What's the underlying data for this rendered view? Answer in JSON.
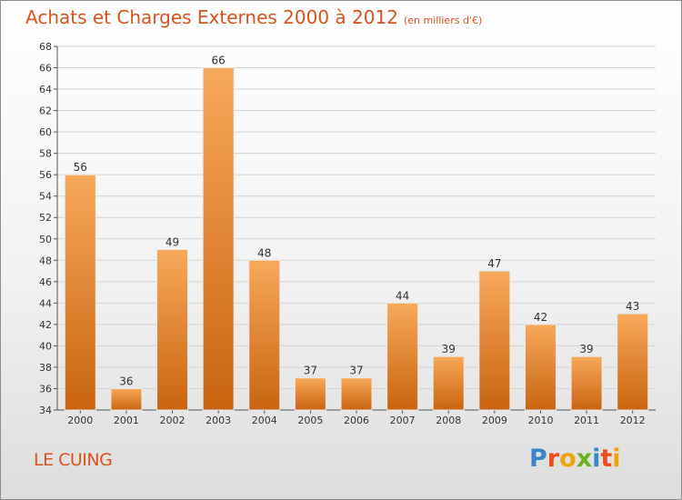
{
  "header": {
    "title": "Achats et Charges Externes 2000 à 2012",
    "unit": "(en milliers d'€)"
  },
  "footer": {
    "commune": "LE CUING",
    "logo_letters": [
      "P",
      "r",
      "o",
      "x",
      "i",
      "t",
      "i"
    ],
    "logo_colors": [
      "#3a86c8",
      "#e94e1b",
      "#f0a30a",
      "#6ab023",
      "#3a86c8",
      "#e94e1b",
      "#f0a30a"
    ]
  },
  "chart_data": {
    "type": "bar",
    "categories": [
      "2000",
      "2001",
      "2002",
      "2003",
      "2004",
      "2005",
      "2006",
      "2007",
      "2008",
      "2009",
      "2010",
      "2011",
      "2012"
    ],
    "values": [
      56,
      36,
      49,
      66,
      48,
      37,
      37,
      44,
      39,
      47,
      42,
      39,
      43
    ],
    "ylim": [
      34,
      68
    ],
    "yticks": [
      34,
      36,
      38,
      40,
      42,
      44,
      46,
      48,
      50,
      52,
      54,
      56,
      58,
      60,
      62,
      64,
      66,
      68
    ],
    "grid": true,
    "bar_color_top": "#f7a95a",
    "bar_color_bottom": "#c96410"
  }
}
